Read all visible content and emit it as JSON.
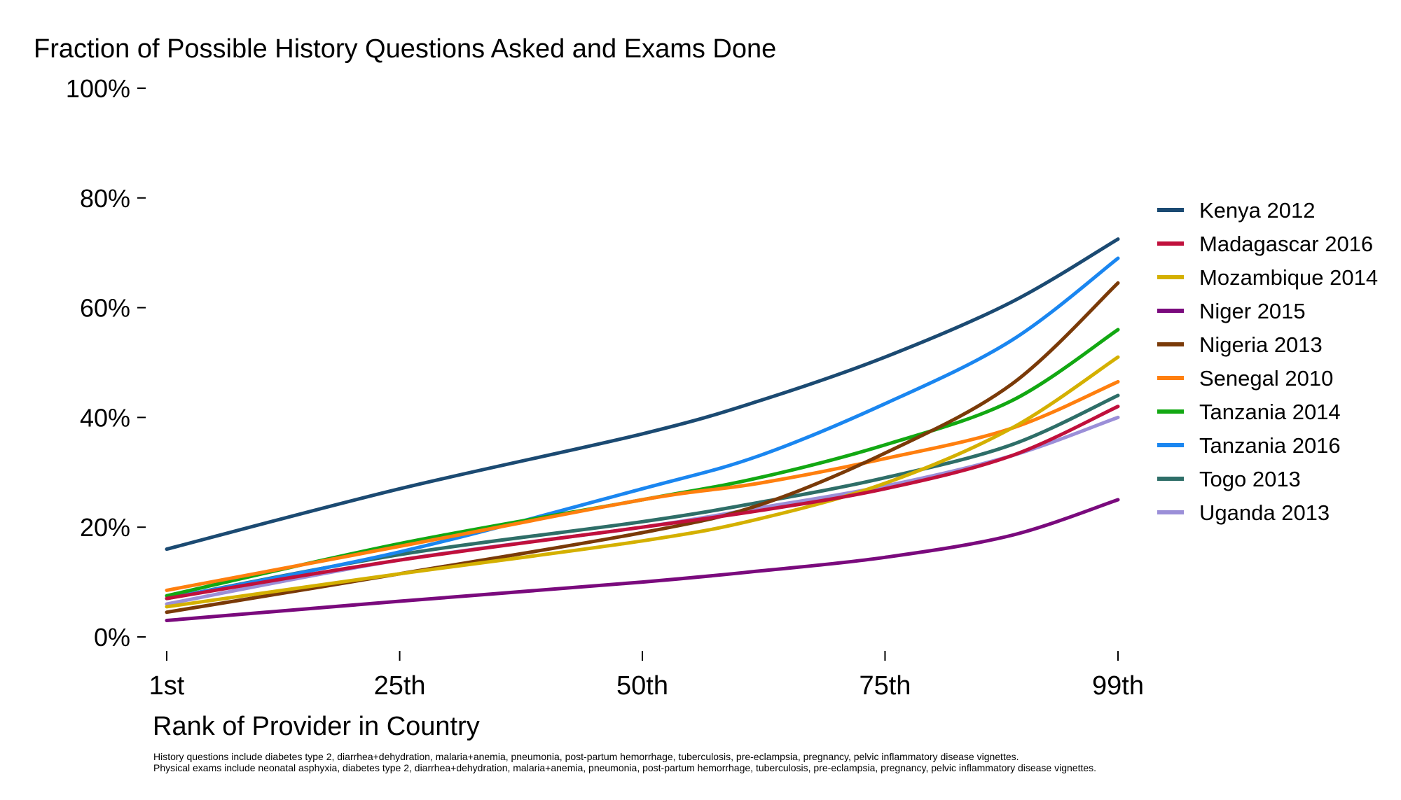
{
  "chart_data": {
    "type": "line",
    "title": "Fraction of Possible History Questions Asked and Exams Done",
    "xlabel": "Rank of Provider in Country",
    "ylabel": "",
    "x_ticks": [
      {
        "value": 1,
        "label": "1st"
      },
      {
        "value": 25,
        "label": "25th"
      },
      {
        "value": 50,
        "label": "50th"
      },
      {
        "value": 75,
        "label": "75th"
      },
      {
        "value": 99,
        "label": "99th"
      }
    ],
    "y_ticks": [
      {
        "value": 0,
        "label": "0%"
      },
      {
        "value": 20,
        "label": "20%"
      },
      {
        "value": 40,
        "label": "40%"
      },
      {
        "value": 60,
        "label": "60%"
      },
      {
        "value": 80,
        "label": "80%"
      },
      {
        "value": 100,
        "label": "100%"
      }
    ],
    "xlim": [
      1,
      99
    ],
    "ylim": [
      0,
      100
    ],
    "grid": false,
    "legend_position": "right",
    "x": [
      1,
      25,
      50,
      62,
      75,
      88,
      99
    ],
    "series": [
      {
        "name": "Kenya 2012",
        "color": "#1b4a72",
        "values": [
          16,
          27,
          37,
          43,
          51,
          61,
          72.5
        ]
      },
      {
        "name": "Madagascar 2016",
        "color": "#c0103c",
        "values": [
          7,
          14,
          20,
          23,
          27,
          33,
          42
        ]
      },
      {
        "name": "Mozambique 2014",
        "color": "#d4b000",
        "values": [
          5.5,
          11.5,
          17.5,
          21.5,
          28,
          38,
          51
        ]
      },
      {
        "name": "Niger 2015",
        "color": "#7a0a7d",
        "values": [
          3,
          6.5,
          10,
          12,
          14.5,
          18.5,
          25
        ]
      },
      {
        "name": "Nigeria 2013",
        "color": "#7a3a08",
        "values": [
          4.5,
          11.5,
          19,
          24,
          33.5,
          46,
          64.5
        ]
      },
      {
        "name": "Senegal 2010",
        "color": "#ff7f0e",
        "values": [
          8.5,
          16.5,
          25,
          28,
          32.5,
          38,
          46.5
        ]
      },
      {
        "name": "Tanzania 2014",
        "color": "#12a812",
        "values": [
          7.5,
          17,
          25,
          29,
          35,
          43,
          56
        ]
      },
      {
        "name": "Tanzania 2016",
        "color": "#1a86f0",
        "values": [
          7,
          15.5,
          27,
          33,
          42.5,
          54,
          69
        ]
      },
      {
        "name": "Togo 2013",
        "color": "#2e6e68",
        "values": [
          7,
          15,
          21,
          24.5,
          29,
          35,
          44
        ]
      },
      {
        "name": "Uganda 2013",
        "color": "#9b8fd8",
        "values": [
          6,
          14,
          20,
          23.5,
          27.5,
          33,
          40
        ]
      }
    ]
  },
  "footnotes": [
    "History questions include diabetes type 2, diarrhea+dehydration, malaria+anemia, pneumonia, post-partum hemorrhage, tuberculosis, pre-eclampsia, pregnancy, pelvic inflammatory disease vignettes.",
    "Physical exams include neonatal asphyxia, diabetes type 2, diarrhea+dehydration, malaria+anemia, pneumonia, post-partum hemorrhage, tuberculosis, pre-eclampsia, pregnancy, pelvic inflammatory disease vignettes."
  ]
}
